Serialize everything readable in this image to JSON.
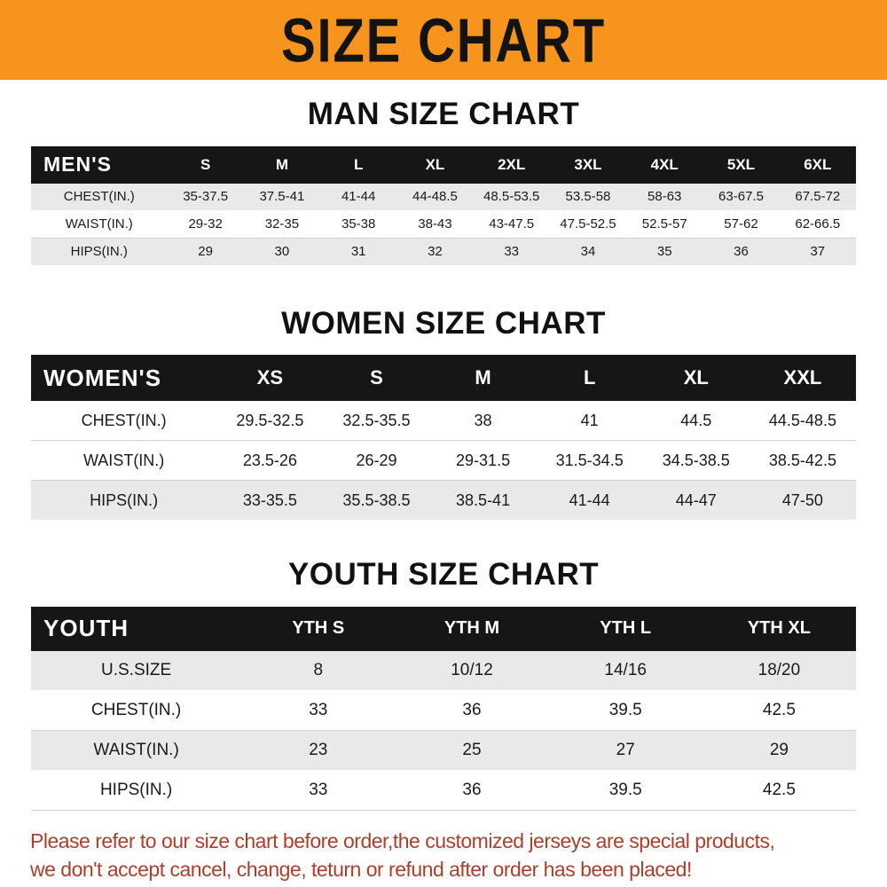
{
  "banner": {
    "title": "SIZE CHART",
    "bg_color": "#f7941d",
    "text_color": "#131313"
  },
  "chart_data": [
    {
      "type": "table",
      "title": "MAN SIZE CHART",
      "corner_label": "MEN'S",
      "columns": [
        "S",
        "M",
        "L",
        "XL",
        "2XL",
        "3XL",
        "4XL",
        "5XL",
        "6XL"
      ],
      "rows": [
        {
          "label": "CHEST(IN.)",
          "shaded": true,
          "values": [
            "35-37.5",
            "37.5-41",
            "41-44",
            "44-48.5",
            "48.5-53.5",
            "53.5-58",
            "58-63",
            "63-67.5",
            "67.5-72"
          ]
        },
        {
          "label": "WAIST(IN.)",
          "shaded": false,
          "values": [
            "29-32",
            "32-35",
            "35-38",
            "38-43",
            "43-47.5",
            "47.5-52.5",
            "52.5-57",
            "57-62",
            "62-66.5"
          ]
        },
        {
          "label": "HIPS(IN.)",
          "shaded": true,
          "values": [
            "29",
            "30",
            "31",
            "32",
            "33",
            "34",
            "35",
            "36",
            "37"
          ]
        }
      ]
    },
    {
      "type": "table",
      "title": "WOMEN SIZE CHART",
      "corner_label": "WOMEN'S",
      "columns": [
        "XS",
        "S",
        "M",
        "L",
        "XL",
        "XXL"
      ],
      "rows": [
        {
          "label": "CHEST(IN.)",
          "shaded": false,
          "values": [
            "29.5-32.5",
            "32.5-35.5",
            "38",
            "41",
            "44.5",
            "44.5-48.5"
          ]
        },
        {
          "label": "WAIST(IN.)",
          "shaded": false,
          "values": [
            "23.5-26",
            "26-29",
            "29-31.5",
            "31.5-34.5",
            "34.5-38.5",
            "38.5-42.5"
          ]
        },
        {
          "label": "HIPS(IN.)",
          "shaded": true,
          "values": [
            "33-35.5",
            "35.5-38.5",
            "38.5-41",
            "41-44",
            "44-47",
            "47-50"
          ]
        }
      ]
    },
    {
      "type": "table",
      "title": "YOUTH SIZE CHART",
      "corner_label": "YOUTH",
      "columns": [
        "YTH S",
        "YTH M",
        "YTH L",
        "YTH XL"
      ],
      "rows": [
        {
          "label": "U.S.SIZE",
          "shaded": true,
          "values": [
            "8",
            "10/12",
            "14/16",
            "18/20"
          ]
        },
        {
          "label": "CHEST(IN.)",
          "shaded": false,
          "values": [
            "33",
            "36",
            "39.5",
            "42.5"
          ]
        },
        {
          "label": "WAIST(IN.)",
          "shaded": true,
          "values": [
            "23",
            "25",
            "27",
            "29"
          ]
        },
        {
          "label": "HIPS(IN.)",
          "shaded": false,
          "values": [
            "33",
            "36",
            "39.5",
            "42.5"
          ]
        }
      ]
    }
  ],
  "footer": {
    "line1": "Please refer to our size chart before order,the customized jerseys are special products,",
    "line2": "we don't accept cancel, change, teturn or refund after order has been placed!",
    "text_color": "#a8402d"
  }
}
